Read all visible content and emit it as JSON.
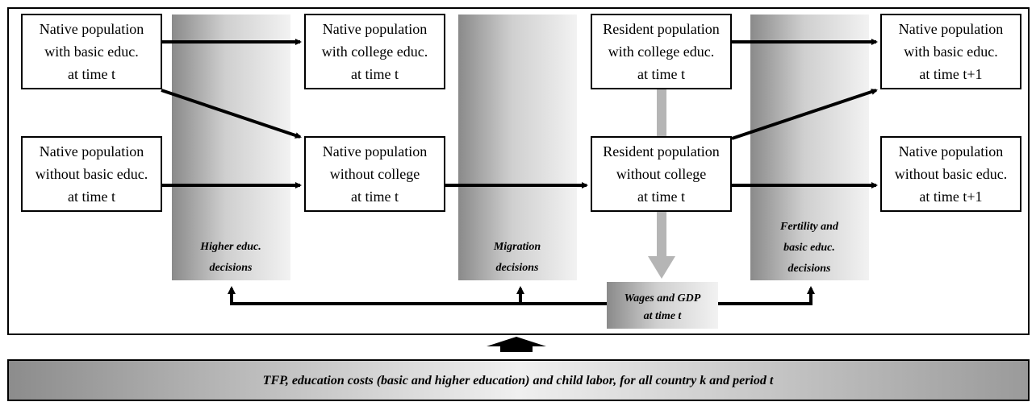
{
  "nodes": [
    {
      "lines": [
        "Native population",
        "with basic educ.",
        "at time t"
      ]
    },
    {
      "lines": [
        "Native population",
        "with college educ.",
        "at time t"
      ]
    },
    {
      "lines": [
        "Resident population",
        "with college educ.",
        "at time t"
      ]
    },
    {
      "lines": [
        "Native population",
        "with basic educ.",
        "at time t+1"
      ]
    },
    {
      "lines": [
        "Native population",
        "without basic educ.",
        "at time t"
      ]
    },
    {
      "lines": [
        "Native population",
        "without college",
        "at time t"
      ]
    },
    {
      "lines": [
        "Resident population",
        "without college",
        "at time t"
      ]
    },
    {
      "lines": [
        "Native population",
        "without basic educ.",
        "at time t+1"
      ]
    }
  ],
  "decisions": [
    {
      "lines": [
        "Higher educ.",
        "decisions"
      ]
    },
    {
      "lines": [
        "Migration",
        "decisions"
      ]
    },
    {
      "lines": [
        "Fertility and",
        "basic educ.",
        "decisions"
      ]
    }
  ],
  "outcome": {
    "lines": [
      "Wages and GDP",
      "at time t"
    ]
  },
  "inputs": "TFP, education costs (basic and higher education) and child labor, for all country k and period t"
}
